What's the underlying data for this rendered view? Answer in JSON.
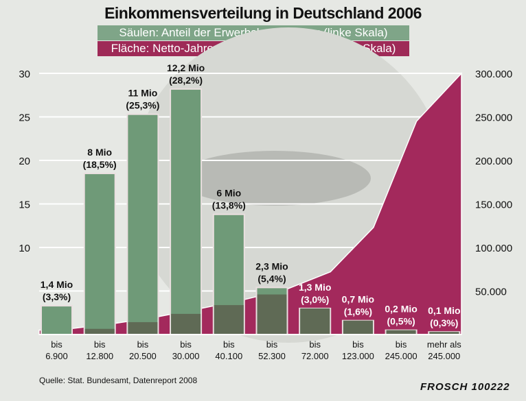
{
  "chart_data": {
    "type": "bar",
    "title": "Einkommensverteilung in Deutschland 2006",
    "legend": [
      {
        "label": "Säulen: Anteil der Erwerbsbevölkerung (linke Skala)",
        "color": "#7fa588"
      },
      {
        "label": "Fläche: Netto-Jahreseinkommen in Euro (rechte Skala)",
        "color": "#9e2a57"
      }
    ],
    "categories": [
      [
        "bis",
        "6.900"
      ],
      [
        "bis",
        "12.800"
      ],
      [
        "bis",
        "20.500"
      ],
      [
        "bis",
        "30.000"
      ],
      [
        "bis",
        "40.100"
      ],
      [
        "bis",
        "52.300"
      ],
      [
        "bis",
        "72.000"
      ],
      [
        "bis",
        "123.000"
      ],
      [
        "bis",
        "245.000"
      ],
      [
        "mehr als",
        "245.000"
      ]
    ],
    "series": [
      {
        "type": "bar",
        "axis": "left",
        "values": [
          3.3,
          18.5,
          25.3,
          28.2,
          13.8,
          5.4,
          3.0,
          1.6,
          0.5,
          0.3
        ],
        "labels": [
          [
            "1,4 Mio",
            "(3,3%)"
          ],
          [
            "8 Mio",
            "(18,5%)"
          ],
          [
            "11 Mio",
            "(25,3%)"
          ],
          [
            "12,2 Mio",
            "(28,2%)"
          ],
          [
            "6 Mio",
            "(13,8%)"
          ],
          [
            "2,3 Mio",
            "(5,4%)"
          ],
          [
            "1,3 Mio",
            "(3,0%)"
          ],
          [
            "0,7 Mio",
            "(1,6%)"
          ],
          [
            "0,2 Mio",
            "(0,5%)"
          ],
          [
            "0,1 Mio",
            "(0,3%)"
          ]
        ]
      },
      {
        "type": "area",
        "axis": "right",
        "values": [
          6900,
          12800,
          20500,
          30000,
          40100,
          52300,
          72000,
          123000,
          245000,
          300000
        ]
      }
    ],
    "left_axis": {
      "range": [
        0,
        30
      ],
      "ticks": [
        "10",
        "15",
        "20",
        "25",
        "30"
      ],
      "tick_values": [
        10,
        15,
        20,
        25,
        30
      ]
    },
    "right_axis": {
      "range": [
        0,
        300000
      ],
      "ticks": [
        "50.000",
        "100.000",
        "150.000",
        "200.000",
        "250.000",
        "300.000"
      ],
      "tick_values": [
        50000,
        100000,
        150000,
        200000,
        250000,
        300000
      ]
    },
    "grid": true,
    "colors": {
      "bar": "#6f9a78",
      "bar_on_area": "#5f6a55",
      "area": "#a3295c",
      "background": "#e6e8e4"
    }
  },
  "source": "Quelle: Stat. Bundesamt, Datenreport 2008",
  "signature": "FROSCH 100222"
}
